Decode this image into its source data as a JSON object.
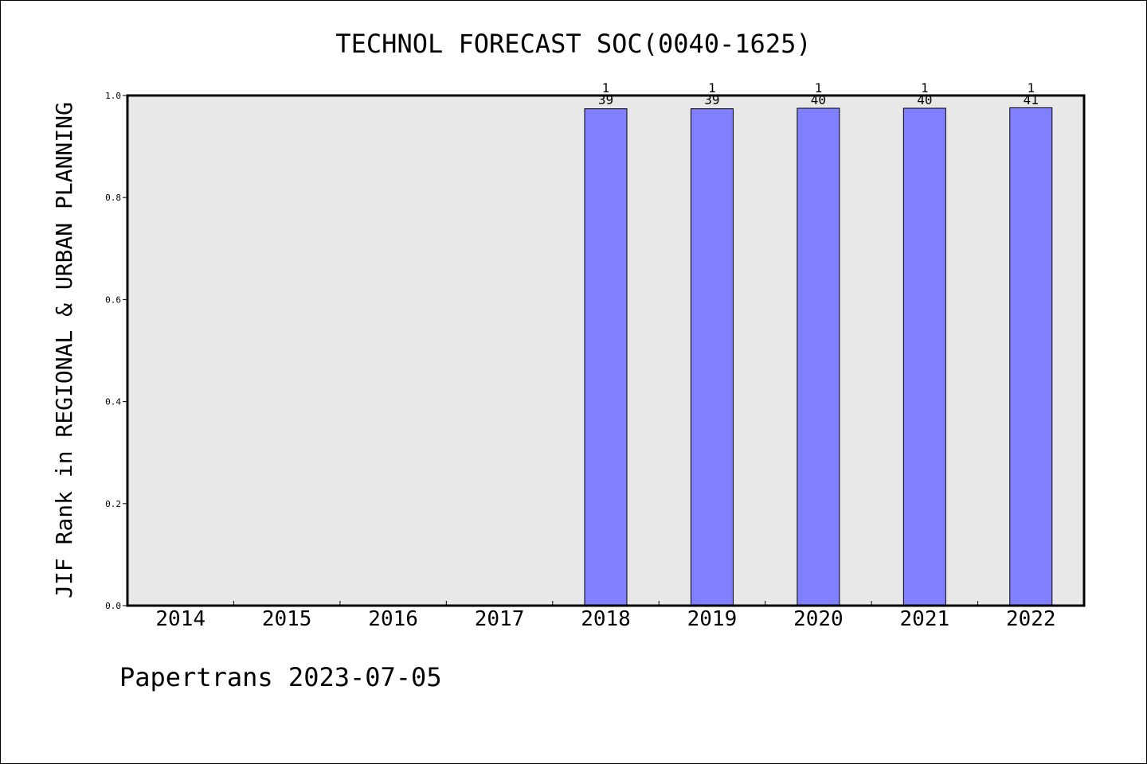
{
  "chart_data": {
    "type": "bar",
    "title": "TECHNOL FORECAST SOC(0040-1625)",
    "ylabel": "JIF Rank in REGIONAL & URBAN PLANNING",
    "xlabel": "",
    "categories": [
      "2014",
      "2015",
      "2016",
      "2017",
      "2018",
      "2019",
      "2020",
      "2021",
      "2022"
    ],
    "values": [
      null,
      null,
      null,
      null,
      0.974,
      0.974,
      0.975,
      0.975,
      0.976
    ],
    "bar_labels": [
      null,
      null,
      null,
      null,
      {
        "rank": "1",
        "total": "39"
      },
      {
        "rank": "1",
        "total": "39"
      },
      {
        "rank": "1",
        "total": "40"
      },
      {
        "rank": "1",
        "total": "40"
      },
      {
        "rank": "1",
        "total": "41"
      }
    ],
    "ylim": [
      0,
      1.0
    ],
    "yticks": [
      "0.0",
      "0.2",
      "0.4",
      "0.6",
      "0.8",
      "1.0"
    ],
    "grid": false,
    "legend": "none",
    "colors": {
      "bar": "#8080ff",
      "plot_background": "#e8e8e8",
      "axis": "#000000"
    }
  },
  "footer": {
    "text": "Papertrans 2023-07-05"
  }
}
